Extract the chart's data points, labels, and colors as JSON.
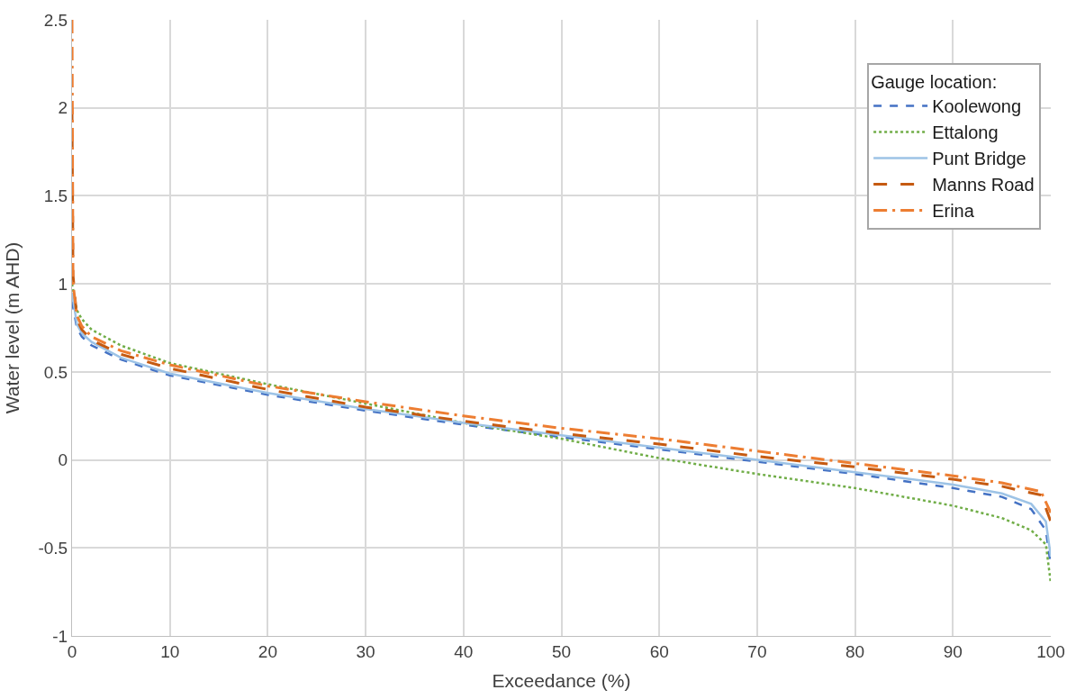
{
  "chart_data": {
    "type": "line",
    "xlabel": "Exceedance (%)",
    "ylabel": "Water level (m AHD)",
    "legend_title": "Gauge location:",
    "legend": "top right",
    "grid": true,
    "marker": "none",
    "xlim": [
      0,
      100
    ],
    "xticks": [
      0,
      10,
      20,
      30,
      40,
      50,
      60,
      70,
      80,
      90,
      100
    ],
    "ylim": [
      -1,
      2.5
    ],
    "yticks": [
      -1,
      -0.5,
      0,
      0.5,
      1,
      1.5,
      2,
      2.5
    ],
    "series": [
      {
        "name": "Koolewong",
        "color": "#4472c4",
        "line_style": "dashed",
        "x": [
          0,
          0.5,
          1,
          2,
          5,
          10,
          20,
          30,
          40,
          50,
          60,
          70,
          80,
          90,
          95,
          98,
          99.5,
          100
        ],
        "values": [
          0.9,
          0.75,
          0.7,
          0.65,
          0.57,
          0.48,
          0.37,
          0.28,
          0.2,
          0.13,
          0.06,
          -0.01,
          -0.08,
          -0.16,
          -0.21,
          -0.28,
          -0.4,
          -0.6
        ]
      },
      {
        "name": "Ettalong",
        "color": "#70ad47",
        "line_style": "dotted",
        "x": [
          0,
          0.5,
          1,
          2,
          5,
          10,
          20,
          30,
          40,
          50,
          60,
          70,
          80,
          90,
          95,
          98,
          99.5,
          100
        ],
        "values": [
          1.0,
          0.85,
          0.8,
          0.74,
          0.65,
          0.55,
          0.43,
          0.32,
          0.21,
          0.12,
          0.01,
          -0.08,
          -0.16,
          -0.26,
          -0.33,
          -0.4,
          -0.48,
          -0.7
        ]
      },
      {
        "name": "Punt Bridge",
        "color": "#9dc3e6",
        "line_style": "solid",
        "x": [
          0,
          0.5,
          1,
          2,
          5,
          10,
          20,
          30,
          40,
          50,
          60,
          70,
          80,
          90,
          95,
          98,
          99.5,
          100
        ],
        "values": [
          0.95,
          0.77,
          0.72,
          0.67,
          0.58,
          0.49,
          0.38,
          0.29,
          0.21,
          0.14,
          0.07,
          0.0,
          -0.07,
          -0.14,
          -0.19,
          -0.25,
          -0.35,
          -0.55
        ]
      },
      {
        "name": "Manns Road",
        "color": "#c55a11",
        "line_style": "longdash",
        "x": [
          0,
          0.1,
          0.5,
          1,
          2,
          5,
          10,
          20,
          30,
          40,
          50,
          60,
          70,
          80,
          90,
          95,
          99,
          100
        ],
        "values": [
          2.0,
          1.05,
          0.8,
          0.74,
          0.68,
          0.6,
          0.52,
          0.4,
          0.3,
          0.22,
          0.15,
          0.09,
          0.02,
          -0.04,
          -0.11,
          -0.15,
          -0.2,
          -0.35
        ]
      },
      {
        "name": "Erina",
        "color": "#ed7d31",
        "line_style": "longdashdot",
        "x": [
          0,
          0.1,
          0.5,
          1,
          2,
          5,
          10,
          20,
          30,
          40,
          50,
          60,
          70,
          80,
          90,
          95,
          99,
          100
        ],
        "values": [
          2.5,
          1.0,
          0.82,
          0.76,
          0.7,
          0.62,
          0.54,
          0.42,
          0.33,
          0.25,
          0.18,
          0.12,
          0.05,
          -0.02,
          -0.09,
          -0.13,
          -0.18,
          -0.3
        ]
      }
    ]
  }
}
